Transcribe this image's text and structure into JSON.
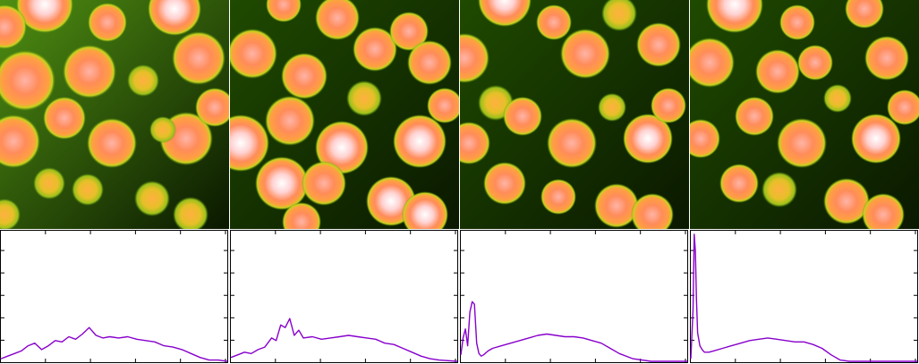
{
  "figure": {
    "panel_count": 4,
    "image_colormap": [
      "#0a1800",
      "#1f4a00",
      "#4f8f12",
      "#c8d21e",
      "#ff8c5a",
      "#ffd2d2",
      "#ffffff"
    ],
    "plot_line_color": "#8800cc",
    "axis_color": "#000000",
    "background": "#ffffff"
  },
  "chart_data": [
    {
      "type": "line",
      "panel": 1,
      "xlim": [
        0,
        1
      ],
      "ylim": [
        0,
        1
      ],
      "x_tick_count": 5,
      "y_tick_count": 5,
      "grid": false,
      "series": [
        {
          "x": [
            0.0,
            0.03,
            0.06,
            0.09,
            0.12,
            0.15,
            0.18,
            0.21,
            0.24,
            0.27,
            0.3,
            0.33,
            0.36,
            0.39,
            0.42,
            0.45,
            0.48,
            0.52,
            0.56,
            0.6,
            0.64,
            0.68,
            0.72,
            0.76,
            0.8,
            0.84,
            0.88,
            0.92,
            0.96,
            1.0
          ],
          "y": [
            0.02,
            0.04,
            0.06,
            0.08,
            0.12,
            0.14,
            0.09,
            0.12,
            0.16,
            0.15,
            0.19,
            0.17,
            0.21,
            0.26,
            0.2,
            0.18,
            0.19,
            0.18,
            0.19,
            0.17,
            0.16,
            0.15,
            0.12,
            0.11,
            0.09,
            0.06,
            0.03,
            0.01,
            0.01,
            0.0
          ]
        }
      ]
    },
    {
      "type": "line",
      "panel": 2,
      "xlim": [
        0,
        1
      ],
      "ylim": [
        0,
        1
      ],
      "x_tick_count": 5,
      "y_tick_count": 5,
      "grid": false,
      "series": [
        {
          "x": [
            0.0,
            0.03,
            0.06,
            0.09,
            0.12,
            0.15,
            0.18,
            0.2,
            0.22,
            0.24,
            0.26,
            0.28,
            0.3,
            0.32,
            0.36,
            0.4,
            0.44,
            0.48,
            0.52,
            0.56,
            0.6,
            0.64,
            0.68,
            0.72,
            0.76,
            0.8,
            0.84,
            0.88,
            0.92,
            1.0
          ],
          "y": [
            0.03,
            0.05,
            0.07,
            0.06,
            0.09,
            0.11,
            0.18,
            0.16,
            0.28,
            0.26,
            0.33,
            0.2,
            0.24,
            0.18,
            0.19,
            0.17,
            0.18,
            0.19,
            0.2,
            0.19,
            0.18,
            0.17,
            0.14,
            0.13,
            0.1,
            0.07,
            0.04,
            0.02,
            0.01,
            0.0
          ]
        }
      ]
    },
    {
      "type": "line",
      "panel": 3,
      "xlim": [
        0,
        1
      ],
      "ylim": [
        0,
        1
      ],
      "x_tick_count": 5,
      "y_tick_count": 5,
      "grid": false,
      "series": [
        {
          "x": [
            0.0,
            0.01,
            0.02,
            0.03,
            0.04,
            0.05,
            0.06,
            0.07,
            0.08,
            0.09,
            0.1,
            0.12,
            0.14,
            0.18,
            0.22,
            0.26,
            0.3,
            0.34,
            0.38,
            0.42,
            0.46,
            0.5,
            0.54,
            0.58,
            0.62,
            0.66,
            0.7,
            0.76,
            0.84,
            1.0
          ],
          "y": [
            0.05,
            0.18,
            0.25,
            0.12,
            0.38,
            0.46,
            0.44,
            0.14,
            0.06,
            0.04,
            0.05,
            0.08,
            0.1,
            0.12,
            0.14,
            0.16,
            0.18,
            0.2,
            0.21,
            0.2,
            0.19,
            0.19,
            0.18,
            0.16,
            0.14,
            0.1,
            0.06,
            0.02,
            0.0,
            0.0
          ]
        }
      ]
    },
    {
      "type": "line",
      "panel": 4,
      "xlim": [
        0,
        1
      ],
      "ylim": [
        0,
        1
      ],
      "x_tick_count": 5,
      "y_tick_count": 5,
      "grid": false,
      "series": [
        {
          "x": [
            0.0,
            0.01,
            0.015,
            0.02,
            0.025,
            0.03,
            0.04,
            0.05,
            0.06,
            0.08,
            0.1,
            0.14,
            0.18,
            0.22,
            0.26,
            0.3,
            0.34,
            0.38,
            0.42,
            0.46,
            0.5,
            0.54,
            0.58,
            0.62,
            0.66,
            0.7,
            0.8,
            0.9,
            1.0
          ],
          "y": [
            0.02,
            0.4,
            0.98,
            0.85,
            0.48,
            0.22,
            0.12,
            0.09,
            0.07,
            0.07,
            0.08,
            0.1,
            0.12,
            0.14,
            0.16,
            0.17,
            0.18,
            0.17,
            0.16,
            0.15,
            0.15,
            0.13,
            0.1,
            0.05,
            0.01,
            0.0,
            0.0,
            0.0,
            0.0
          ]
        }
      ]
    }
  ]
}
